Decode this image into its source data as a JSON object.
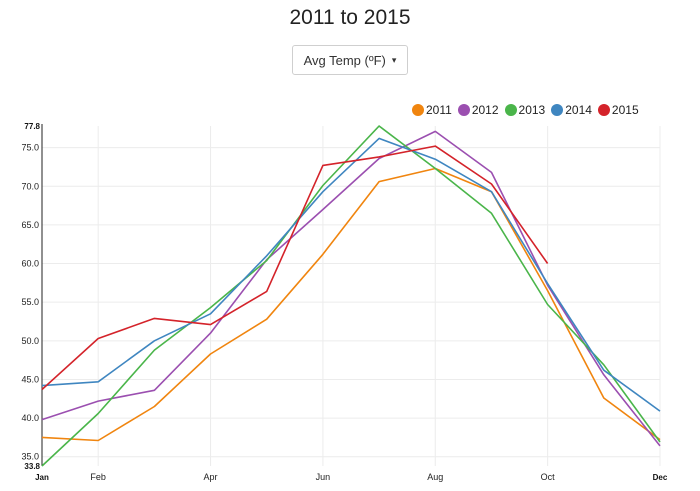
{
  "page": {
    "title": "2011 to 2015"
  },
  "metric_selector": {
    "label": "Avg Temp (ºF)",
    "caret": "▾"
  },
  "chart_data": {
    "type": "line",
    "title": "2011 to 2015",
    "xlabel": "",
    "ylabel": "",
    "x_labels": [
      "Jan",
      "Feb",
      "Apr",
      "Jun",
      "Aug",
      "Oct",
      "Dec"
    ],
    "x_label_months": [
      1,
      2,
      4,
      6,
      8,
      10,
      12
    ],
    "x_range": [
      1,
      12
    ],
    "ylim": [
      33.8,
      77.8
    ],
    "y_ticks": [
      35.0,
      40.0,
      45.0,
      50.0,
      55.0,
      60.0,
      65.0,
      70.0,
      75.0
    ],
    "y_ticks_bold": [
      33.8,
      77.8
    ],
    "grid": true,
    "legend_position": "top-right",
    "series": [
      {
        "name": "2011",
        "color": "#f0850f",
        "x": [
          1,
          2,
          3,
          4,
          5,
          6,
          7,
          8,
          9,
          10,
          11,
          12
        ],
        "values": [
          37.5,
          37.1,
          41.5,
          48.3,
          52.8,
          61.2,
          70.6,
          72.3,
          69.3,
          56.5,
          42.6,
          37.2
        ]
      },
      {
        "name": "2012",
        "color": "#9b4fb0",
        "x": [
          1,
          2,
          3,
          4,
          5,
          6,
          7,
          8,
          9,
          10,
          11,
          12
        ],
        "values": [
          39.8,
          42.2,
          43.6,
          51.0,
          60.5,
          67.0,
          73.6,
          77.1,
          71.8,
          57.2,
          45.6,
          36.4
        ]
      },
      {
        "name": "2013",
        "color": "#4ab54a",
        "x": [
          1,
          2,
          3,
          4,
          5,
          6,
          7,
          8,
          9,
          10,
          11,
          12
        ],
        "values": [
          33.8,
          40.6,
          48.8,
          54.3,
          60.4,
          70.1,
          77.8,
          72.3,
          66.5,
          54.7,
          46.9,
          36.9
        ]
      },
      {
        "name": "2014",
        "color": "#3f86c0",
        "x": [
          1,
          2,
          3,
          4,
          5,
          6,
          7,
          8,
          9,
          10,
          11,
          12
        ],
        "values": [
          44.2,
          44.7,
          50.0,
          53.5,
          61.0,
          69.3,
          76.2,
          73.5,
          69.3,
          57.4,
          46.2,
          40.9
        ]
      },
      {
        "name": "2015",
        "color": "#d4232a",
        "x": [
          1,
          2,
          3,
          4,
          5,
          6,
          7,
          8,
          9,
          10
        ],
        "values": [
          43.7,
          50.3,
          52.9,
          52.1,
          56.4,
          72.7,
          73.8,
          75.2,
          70.3,
          60.0
        ]
      }
    ]
  }
}
